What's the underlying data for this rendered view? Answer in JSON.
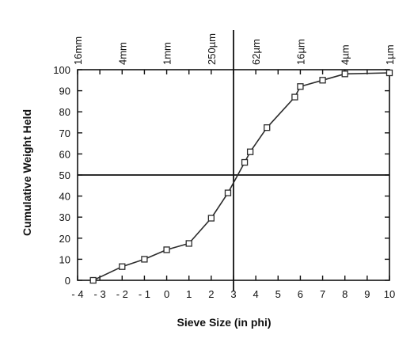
{
  "chart_data": {
    "type": "line",
    "title": "",
    "xlabel": "Sieve Size (in phi)",
    "ylabel": "Cumulative Weight Held",
    "xlim": [
      -4,
      10
    ],
    "ylim": [
      0,
      100
    ],
    "x_ticks": [
      "- 4",
      "- 3",
      "- 2",
      "- 1",
      "0",
      "1",
      "2",
      "3",
      "4",
      "5",
      "6",
      "7",
      "8",
      "9",
      "10"
    ],
    "y_ticks": [
      "0",
      "10",
      "20",
      "30",
      "40",
      "50",
      "60",
      "70",
      "80",
      "90",
      "100"
    ],
    "top_axis_labels": [
      {
        "phi": -4,
        "label": "16mm"
      },
      {
        "phi": -2,
        "label": "4mm"
      },
      {
        "phi": 0,
        "label": "1mm"
      },
      {
        "phi": 2,
        "label": "250µm"
      },
      {
        "phi": 4,
        "label": "62µm"
      },
      {
        "phi": 6,
        "label": "16µm"
      },
      {
        "phi": 8,
        "label": "4µm"
      },
      {
        "phi": 10,
        "label": "1µm"
      }
    ],
    "series": [
      {
        "x": [
          -3.3,
          -2.0,
          -1.0,
          0.0,
          1.0,
          2.0,
          2.75,
          3.5,
          3.75,
          4.5,
          5.75,
          6.0,
          7.0,
          8.0,
          10.0
        ],
        "y": [
          0,
          6.5,
          10,
          14.5,
          17.5,
          29.5,
          41.5,
          56,
          61,
          72.5,
          87,
          92,
          95,
          98,
          98.5
        ]
      }
    ],
    "reference_lines": {
      "x": 3.0,
      "y": 50
    },
    "marker": "square",
    "grid": false,
    "colors": {
      "line": "#2b2b2b",
      "axis": "#111111",
      "marker_fill": "#ffffff"
    }
  }
}
